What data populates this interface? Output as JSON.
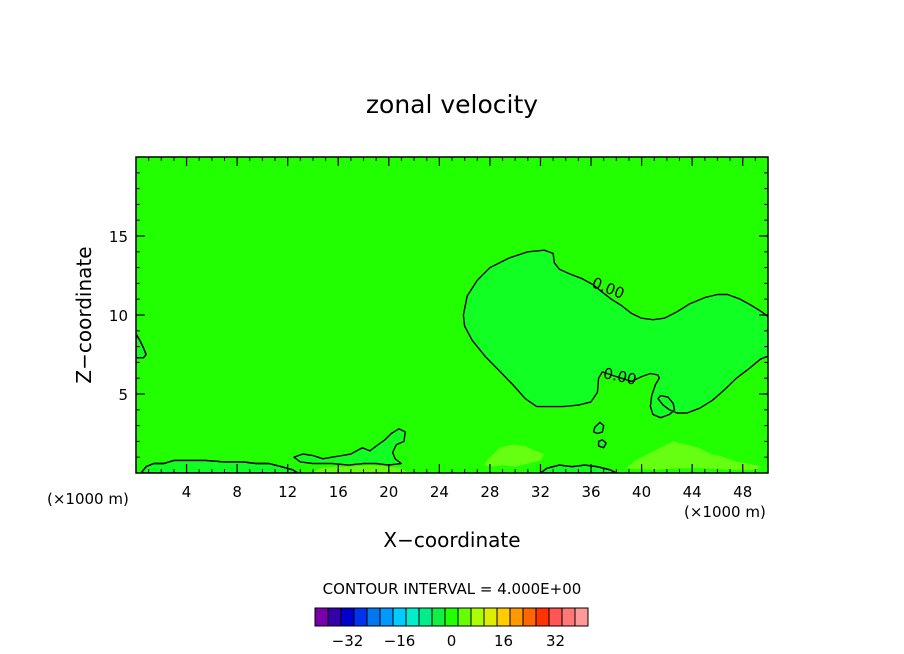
{
  "chart_data": {
    "type": "contour",
    "title": "zonal velocity",
    "xlabel": "X−coordinate",
    "ylabel": "Z−coordinate",
    "x_unit_left": "(×1000 m)",
    "x_unit_right": "(×1000 m)",
    "xlim": [
      0,
      50
    ],
    "ylim": [
      0,
      20
    ],
    "x_ticks": [
      4,
      8,
      12,
      16,
      20,
      24,
      28,
      32,
      36,
      40,
      44,
      48
    ],
    "y_ticks": [
      5,
      10,
      15
    ],
    "x_minor_step": 1,
    "y_minor_step": 1,
    "background_color": "#22ff00",
    "contour_labels": [
      {
        "text": "0.00",
        "x": 37.2,
        "z": 11.4,
        "angle": 22
      },
      {
        "text": "0.00",
        "x": 38.2,
        "z": 5.8,
        "angle": 12
      }
    ],
    "contours": [
      {
        "name": "zero-contour-main",
        "fill": "#11ff22",
        "closed": true,
        "points": [
          [
            25.9,
            10.0
          ],
          [
            26.2,
            11.2
          ],
          [
            27.0,
            12.2
          ],
          [
            28.0,
            13.0
          ],
          [
            29.5,
            13.6
          ],
          [
            31.0,
            14.0
          ],
          [
            32.3,
            14.1
          ],
          [
            33.0,
            13.9
          ],
          [
            33.1,
            13.3
          ],
          [
            33.5,
            12.9
          ],
          [
            34.3,
            12.6
          ],
          [
            35.3,
            12.3
          ],
          [
            36.2,
            11.9
          ],
          [
            36.8,
            11.5
          ],
          [
            37.6,
            11.0
          ],
          [
            38.4,
            10.6
          ],
          [
            39.2,
            10.1
          ],
          [
            40.0,
            9.8
          ],
          [
            40.9,
            9.7
          ],
          [
            41.8,
            9.8
          ],
          [
            42.8,
            10.2
          ],
          [
            43.8,
            10.7
          ],
          [
            45.0,
            11.1
          ],
          [
            46.0,
            11.3
          ],
          [
            46.8,
            11.3
          ],
          [
            47.8,
            11.0
          ],
          [
            48.7,
            10.6
          ],
          [
            49.5,
            10.2
          ],
          [
            50.0,
            9.9
          ],
          [
            50.0,
            7.4
          ],
          [
            49.4,
            7.2
          ],
          [
            48.5,
            6.6
          ],
          [
            47.5,
            6.0
          ],
          [
            46.6,
            5.3
          ],
          [
            45.6,
            4.6
          ],
          [
            44.6,
            4.1
          ],
          [
            43.6,
            3.8
          ],
          [
            42.8,
            3.8
          ],
          [
            42.2,
            4.0
          ],
          [
            41.7,
            4.3
          ],
          [
            41.3,
            4.7
          ],
          [
            41.5,
            4.9
          ],
          [
            42.1,
            4.8
          ],
          [
            42.5,
            4.4
          ],
          [
            42.6,
            4.0
          ],
          [
            42.2,
            3.7
          ],
          [
            41.5,
            3.5
          ],
          [
            40.9,
            3.7
          ],
          [
            40.7,
            4.2
          ],
          [
            40.8,
            4.9
          ],
          [
            41.1,
            5.6
          ],
          [
            41.4,
            6.0
          ],
          [
            41.3,
            6.2
          ],
          [
            40.7,
            6.3
          ],
          [
            40.0,
            6.1
          ],
          [
            39.2,
            5.8
          ],
          [
            38.4,
            6.0
          ],
          [
            37.6,
            6.2
          ],
          [
            36.9,
            6.4
          ],
          [
            36.6,
            6.0
          ],
          [
            36.5,
            5.1
          ],
          [
            36.0,
            4.5
          ],
          [
            35.0,
            4.3
          ],
          [
            33.8,
            4.2
          ],
          [
            32.8,
            4.2
          ],
          [
            31.7,
            4.2
          ],
          [
            30.8,
            4.7
          ],
          [
            29.8,
            5.6
          ],
          [
            28.7,
            6.5
          ],
          [
            27.6,
            7.4
          ],
          [
            26.6,
            8.4
          ],
          [
            26.0,
            9.3
          ]
        ]
      },
      {
        "name": "left-edge-bump",
        "fill": "#11ff22",
        "closed": false,
        "points": [
          [
            0.0,
            8.8
          ],
          [
            0.3,
            8.4
          ],
          [
            0.6,
            7.9
          ],
          [
            0.8,
            7.5
          ],
          [
            0.6,
            7.3
          ],
          [
            0.0,
            7.3
          ]
        ]
      },
      {
        "name": "bottom-contour-left",
        "fill": "#11ff22",
        "closed": false,
        "points": [
          [
            0.4,
            0.0
          ],
          [
            0.8,
            0.4
          ],
          [
            1.4,
            0.6
          ],
          [
            2.2,
            0.6
          ],
          [
            3.0,
            0.8
          ],
          [
            4.0,
            0.8
          ],
          [
            5.5,
            0.8
          ],
          [
            7.0,
            0.7
          ],
          [
            8.5,
            0.7
          ],
          [
            9.5,
            0.6
          ],
          [
            10.5,
            0.6
          ],
          [
            11.5,
            0.4
          ],
          [
            12.4,
            0.2
          ],
          [
            12.8,
            0.0
          ]
        ]
      },
      {
        "name": "bottom-blob-mid",
        "fill": "#11ff22",
        "closed": true,
        "points": [
          [
            12.5,
            1.0
          ],
          [
            13.2,
            1.2
          ],
          [
            14.0,
            1.1
          ],
          [
            14.8,
            0.9
          ],
          [
            15.5,
            1.0
          ],
          [
            16.3,
            1.1
          ],
          [
            17.0,
            1.2
          ],
          [
            17.9,
            1.6
          ],
          [
            18.5,
            1.4
          ],
          [
            19.0,
            1.7
          ],
          [
            19.7,
            2.1
          ],
          [
            20.2,
            2.5
          ],
          [
            20.8,
            2.8
          ],
          [
            21.3,
            2.6
          ],
          [
            21.2,
            2.0
          ],
          [
            20.6,
            1.8
          ],
          [
            20.3,
            1.3
          ],
          [
            20.5,
            0.9
          ],
          [
            21.0,
            0.6
          ],
          [
            20.0,
            0.5
          ],
          [
            19.0,
            0.6
          ],
          [
            18.0,
            0.6
          ],
          [
            16.8,
            0.5
          ],
          [
            15.5,
            0.6
          ],
          [
            14.0,
            0.6
          ],
          [
            13.0,
            0.7
          ]
        ]
      },
      {
        "name": "small-loop-a",
        "fill": "#11ff22",
        "closed": true,
        "points": [
          [
            36.3,
            2.9
          ],
          [
            36.7,
            3.2
          ],
          [
            37.0,
            3.0
          ],
          [
            36.9,
            2.6
          ],
          [
            36.5,
            2.5
          ],
          [
            36.2,
            2.6
          ]
        ]
      },
      {
        "name": "small-loop-b",
        "fill": "#11ff22",
        "closed": true,
        "points": [
          [
            36.6,
            2.0
          ],
          [
            36.9,
            2.1
          ],
          [
            37.2,
            1.9
          ],
          [
            37.0,
            1.6
          ],
          [
            36.6,
            1.7
          ]
        ]
      },
      {
        "name": "bottom-contour-right",
        "fill": "#11ff22",
        "closed": false,
        "points": [
          [
            32.0,
            0.0
          ],
          [
            32.5,
            0.3
          ],
          [
            33.5,
            0.5
          ],
          [
            34.5,
            0.4
          ],
          [
            35.5,
            0.5
          ],
          [
            36.5,
            0.4
          ],
          [
            37.5,
            0.2
          ],
          [
            38.0,
            0.0
          ]
        ]
      },
      {
        "name": "bottom-light-patch-1",
        "fill": "#66ff11",
        "closed": true,
        "points": [
          [
            14.0,
            0.0
          ],
          [
            14.5,
            0.3
          ],
          [
            15.5,
            0.4
          ],
          [
            17.0,
            0.4
          ],
          [
            18.5,
            0.5
          ],
          [
            20.0,
            0.4
          ],
          [
            21.0,
            0.3
          ],
          [
            21.5,
            0.0
          ]
        ]
      },
      {
        "name": "bottom-light-patch-2",
        "fill": "#66ff11",
        "closed": true,
        "points": [
          [
            27.5,
            0.5
          ],
          [
            28.0,
            1.0
          ],
          [
            28.8,
            1.6
          ],
          [
            29.8,
            1.8
          ],
          [
            30.8,
            1.7
          ],
          [
            31.6,
            1.4
          ],
          [
            32.3,
            1.2
          ],
          [
            32.0,
            0.8
          ],
          [
            31.0,
            0.6
          ],
          [
            30.0,
            0.4
          ],
          [
            29.0,
            0.5
          ],
          [
            28.0,
            0.4
          ]
        ]
      },
      {
        "name": "bottom-light-patch-3",
        "fill": "#66ff11",
        "closed": true,
        "points": [
          [
            38.8,
            0.3
          ],
          [
            39.5,
            0.8
          ],
          [
            40.5,
            1.2
          ],
          [
            41.5,
            1.6
          ],
          [
            42.5,
            2.0
          ],
          [
            43.5,
            1.8
          ],
          [
            44.5,
            1.6
          ],
          [
            45.5,
            1.2
          ],
          [
            46.5,
            1.0
          ],
          [
            47.5,
            0.7
          ],
          [
            48.5,
            0.6
          ],
          [
            49.5,
            0.4
          ],
          [
            49.0,
            0.2
          ],
          [
            47.0,
            0.2
          ],
          [
            45.0,
            0.3
          ],
          [
            43.0,
            0.3
          ],
          [
            41.0,
            0.2
          ]
        ]
      }
    ],
    "colorbar": {
      "title": "CONTOUR INTERVAL = 4.000E+00",
      "ticks": [
        "−32",
        "−16",
        "0",
        "16",
        "32"
      ],
      "colors": [
        "#7700aa",
        "#3300aa",
        "#0000cc",
        "#0033ee",
        "#0077ee",
        "#0099ff",
        "#00ccff",
        "#00eecc",
        "#00ee88",
        "#11ee44",
        "#22ff00",
        "#66ff00",
        "#aaff00",
        "#ddee00",
        "#ffcc00",
        "#ff9900",
        "#ff6600",
        "#ff3300",
        "#ff5555",
        "#ff7777",
        "#ff9999"
      ]
    }
  }
}
